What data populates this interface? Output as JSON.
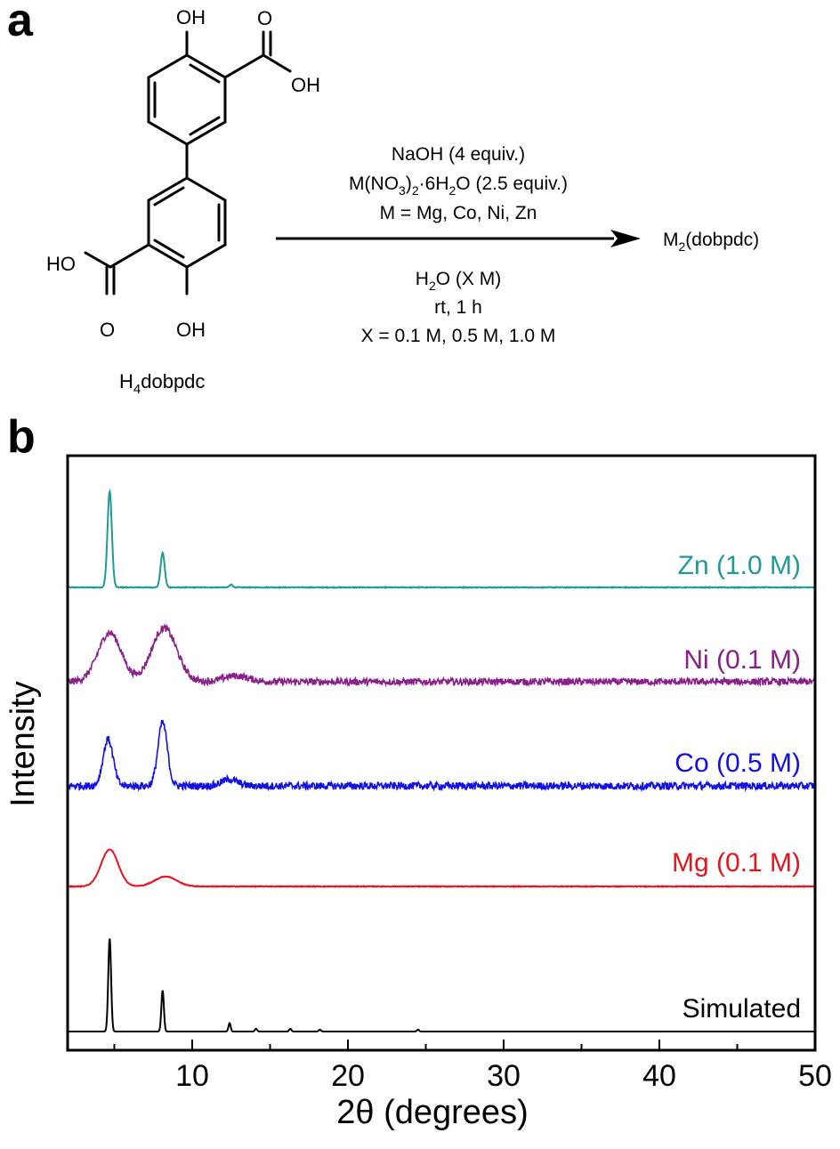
{
  "panels": {
    "a": "a",
    "b": "b"
  },
  "scheme": {
    "molecule_name": {
      "main": "H",
      "sub": "4",
      "rest": "dobpdc"
    },
    "groups": {
      "oh": "OH",
      "ho": "HO",
      "o": "O"
    },
    "conditions_above": [
      {
        "kind": "plain",
        "text": "NaOH (4 equiv.)"
      },
      {
        "kind": "salt",
        "a": "M(NO",
        "b": "3",
        "c": ")",
        "d": "2",
        "e": "·6H",
        "f": "2",
        "g": "O (2.5 equiv.)"
      },
      {
        "kind": "plain",
        "text": "M = Mg, Co, Ni, Zn"
      }
    ],
    "conditions_below": {
      "solvent": {
        "a": "H",
        "b": "2",
        "c": "O (X M)"
      },
      "time": "rt, 1 h",
      "conc": "X = 0.1 M, 0.5 M, 1.0 M"
    },
    "product": {
      "a": "M",
      "b": "2",
      "c": "(dobpdc)"
    }
  },
  "chart_data": {
    "type": "line",
    "xlabel": "2θ (degrees)",
    "ylabel": "Intensity",
    "xlim": [
      2,
      50
    ],
    "xticks": [
      10,
      20,
      30,
      40,
      50
    ],
    "grid": false,
    "series": [
      {
        "name": "Zn (1.0 M)",
        "color": "#1f9a96",
        "noise": 0.004,
        "peaks": [
          {
            "x": 4.7,
            "h": 1.0,
            "w": 0.14
          },
          {
            "x": 8.1,
            "h": 0.36,
            "w": 0.13
          },
          {
            "x": 12.5,
            "h": 0.03,
            "w": 0.1
          }
        ]
      },
      {
        "name": "Ni (0.1 M)",
        "color": "#8a1e8a",
        "noise": 0.035,
        "peaks": [
          {
            "x": 4.7,
            "h": 0.5,
            "w": 0.75
          },
          {
            "x": 8.2,
            "h": 0.55,
            "w": 0.8
          },
          {
            "x": 12.8,
            "h": 0.06,
            "w": 0.8
          }
        ]
      },
      {
        "name": "Co (0.5 M)",
        "color": "#1010e6",
        "noise": 0.04,
        "peaks": [
          {
            "x": 4.6,
            "h": 0.5,
            "w": 0.32
          },
          {
            "x": 8.1,
            "h": 0.68,
            "w": 0.3
          },
          {
            "x": 12.4,
            "h": 0.07,
            "w": 0.5
          }
        ]
      },
      {
        "name": "Mg (0.1 M)",
        "color": "#e8141b",
        "noise": 0.005,
        "peaks": [
          {
            "x": 4.7,
            "h": 0.52,
            "w": 0.55
          },
          {
            "x": 8.3,
            "h": 0.14,
            "w": 0.7
          }
        ]
      },
      {
        "name": "Simulated",
        "color": "#000000",
        "noise": 0.0,
        "peaks": [
          {
            "x": 4.7,
            "h": 1.0,
            "w": 0.09
          },
          {
            "x": 8.1,
            "h": 0.44,
            "w": 0.08
          },
          {
            "x": 12.4,
            "h": 0.09,
            "w": 0.07
          },
          {
            "x": 14.1,
            "h": 0.03,
            "w": 0.07
          },
          {
            "x": 16.3,
            "h": 0.03,
            "w": 0.07
          },
          {
            "x": 18.2,
            "h": 0.02,
            "w": 0.07
          },
          {
            "x": 24.5,
            "h": 0.02,
            "w": 0.07
          }
        ]
      }
    ]
  }
}
